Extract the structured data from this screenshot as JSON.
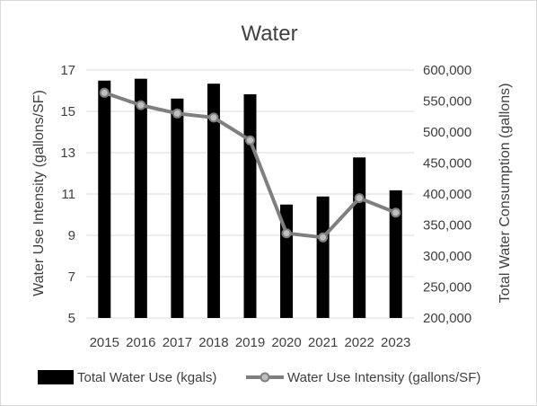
{
  "chart_data": {
    "type": "bar+line",
    "title": "Water",
    "categories": [
      "2015",
      "2016",
      "2017",
      "2018",
      "2019",
      "2020",
      "2021",
      "2022",
      "2023"
    ],
    "y_left": {
      "label": "Water Use Intensity (gallons/SF)",
      "ticks": [
        "5",
        "7",
        "9",
        "11",
        "13",
        "15",
        "17"
      ],
      "range": [
        5,
        17
      ]
    },
    "y_right": {
      "label": "Total Water Consumption (gallons)",
      "ticks": [
        "200,000",
        "250,000",
        "300,000",
        "350,000",
        "400,000",
        "450,000",
        "500,000",
        "550,000",
        "600,000"
      ],
      "range": [
        200000,
        600000
      ]
    },
    "series": [
      {
        "name": "Total Water Use (kgals)",
        "type": "bar",
        "axis": "right",
        "color": "#000000",
        "values": [
          583000,
          586000,
          554000,
          578000,
          561000,
          383000,
          396000,
          459000,
          406000
        ]
      },
      {
        "name": "Water Use Intensity (gallons/SF)",
        "type": "line",
        "axis": "left",
        "color": "#7f7f7f",
        "marker_color": "#bfbfbf",
        "values": [
          15.9,
          15.3,
          14.9,
          14.7,
          13.6,
          9.1,
          8.9,
          10.8,
          10.1
        ]
      }
    ],
    "grid": true,
    "legend_position": "bottom"
  }
}
